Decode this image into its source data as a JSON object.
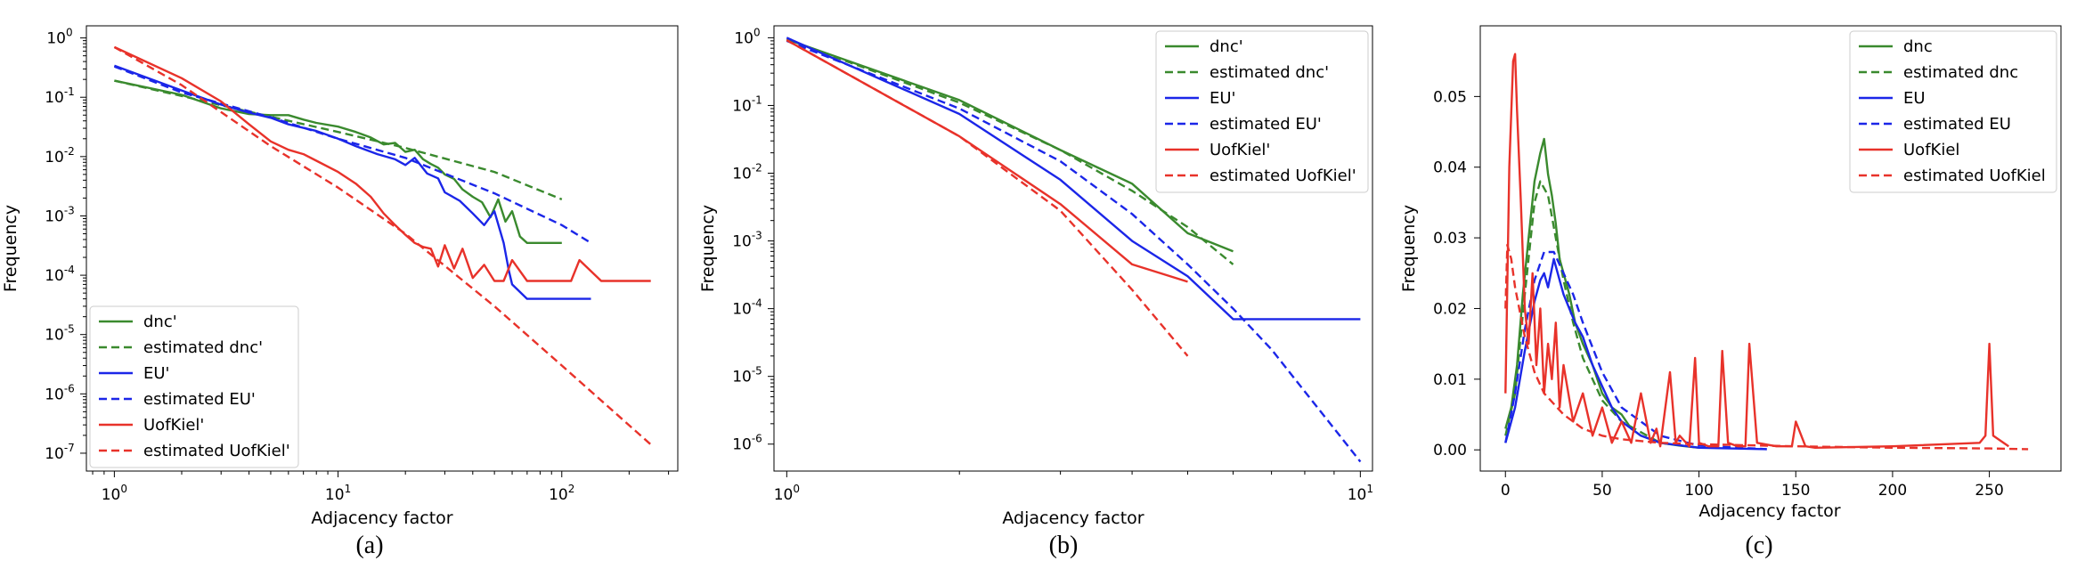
{
  "colors": {
    "green": "#3a8a2e",
    "blue": "#1b26e8",
    "red": "#e8322a"
  },
  "chart_data": [
    {
      "caption": "(a)",
      "type": "line",
      "scale": "loglog",
      "xlabel": "Adjacency factor",
      "ylabel": "Frequency",
      "xlim": [
        0.75,
        330
      ],
      "ylim": [
        5e-08,
        1.6
      ],
      "xticks": [
        1,
        10,
        100
      ],
      "xticklabels": [
        "10^0",
        "10^1",
        "10^2"
      ],
      "yticks": [
        1e-07,
        1e-06,
        1e-05,
        0.0001,
        0.001,
        0.01,
        0.1,
        1
      ],
      "yticklabels": [
        "10^-7",
        "10^-6",
        "10^-5",
        "10^-4",
        "10^-3",
        "10^-2",
        "10^-1",
        "10^0"
      ],
      "legend": {
        "position": "lower-left",
        "entries": [
          "dnc'",
          "estimated dnc'",
          "EU'",
          "estimated EU'",
          "UofKiel'",
          "estimated UofKiel'"
        ]
      },
      "series": [
        {
          "name": "dnc'",
          "color": "green",
          "dash": false,
          "x": [
            1,
            2,
            3,
            4,
            5,
            6,
            7,
            8,
            10,
            12,
            14,
            16,
            18,
            20,
            22,
            24,
            26,
            28,
            30,
            33,
            36,
            40,
            44,
            48,
            52,
            56,
            60,
            65,
            70,
            80,
            100
          ],
          "y": [
            0.19,
            0.11,
            0.065,
            0.052,
            0.05,
            0.05,
            0.042,
            0.037,
            0.032,
            0.026,
            0.021,
            0.016,
            0.017,
            0.012,
            0.013,
            0.009,
            0.0075,
            0.0065,
            0.005,
            0.0042,
            0.0028,
            0.0021,
            0.0017,
            0.00095,
            0.0019,
            0.0008,
            0.0012,
            0.00045,
            0.00035,
            0.00035,
            0.00035
          ]
        },
        {
          "name": "estimated dnc'",
          "color": "green",
          "dash": true,
          "x": [
            1,
            2,
            5,
            10,
            20,
            50,
            100
          ],
          "y": [
            0.19,
            0.105,
            0.047,
            0.026,
            0.014,
            0.0055,
            0.0019
          ]
        },
        {
          "name": "EU'",
          "color": "blue",
          "dash": false,
          "x": [
            1,
            2,
            3,
            4,
            5,
            6,
            8,
            10,
            12,
            15,
            18,
            20,
            22,
            25,
            28,
            30,
            35,
            40,
            45,
            50,
            55,
            58,
            60,
            70,
            80,
            100,
            135
          ],
          "y": [
            0.34,
            0.13,
            0.075,
            0.055,
            0.045,
            0.035,
            0.027,
            0.02,
            0.015,
            0.011,
            0.009,
            0.0072,
            0.0095,
            0.0052,
            0.0043,
            0.0025,
            0.0018,
            0.0011,
            0.0007,
            0.0012,
            0.00035,
            0.00012,
            7e-05,
            4e-05,
            4e-05,
            4e-05,
            4e-05
          ]
        },
        {
          "name": "estimated EU'",
          "color": "blue",
          "dash": true,
          "x": [
            1,
            2,
            5,
            10,
            20,
            50,
            100,
            135
          ],
          "y": [
            0.33,
            0.12,
            0.046,
            0.02,
            0.0095,
            0.0024,
            0.0007,
            0.00035
          ]
        },
        {
          "name": "UofKiel'",
          "color": "red",
          "dash": false,
          "x": [
            1,
            2,
            3,
            4,
            5,
            6,
            7,
            8,
            10,
            12,
            14,
            16,
            18,
            20,
            22,
            24,
            26,
            28,
            30,
            33,
            36,
            40,
            45,
            50,
            55,
            60,
            70,
            90,
            100,
            110,
            120,
            150,
            250
          ],
          "y": [
            0.7,
            0.21,
            0.085,
            0.035,
            0.018,
            0.013,
            0.011,
            0.0085,
            0.0055,
            0.0035,
            0.0021,
            0.0011,
            0.0007,
            0.00048,
            0.00035,
            0.0003,
            0.00028,
            0.00014,
            0.00032,
            0.00013,
            0.00028,
            9e-05,
            0.00015,
            8e-05,
            8e-05,
            0.00018,
            8e-05,
            8e-05,
            8e-05,
            8e-05,
            0.00018,
            8e-05,
            8e-05
          ]
        },
        {
          "name": "estimated UofKiel'",
          "color": "red",
          "dash": true,
          "x": [
            1,
            2,
            5,
            10,
            20,
            50,
            100,
            250
          ],
          "y": [
            0.7,
            0.16,
            0.015,
            0.003,
            0.0005,
            3e-05,
            3e-06,
            1.4e-07
          ]
        }
      ]
    },
    {
      "caption": "(b)",
      "type": "line",
      "scale": "loglog",
      "xlabel": "Adjacency factor",
      "ylabel": "Frequency",
      "xlim": [
        0.95,
        10.5
      ],
      "ylim": [
        4e-07,
        1.5
      ],
      "xticks": [
        1,
        10
      ],
      "xticklabels": [
        "10^0",
        "10^1"
      ],
      "yticks": [
        1e-06,
        1e-05,
        0.0001,
        0.001,
        0.01,
        0.1,
        1
      ],
      "yticklabels": [
        "10^-6",
        "10^-5",
        "10^-4",
        "10^-3",
        "10^-2",
        "10^-1",
        "10^0"
      ],
      "legend": {
        "position": "top-right",
        "entries": [
          "dnc'",
          "estimated dnc'",
          "EU'",
          "estimated EU'",
          "UofKiel'",
          "estimated UofKiel'"
        ]
      },
      "series": [
        {
          "name": "dnc'",
          "color": "green",
          "dash": false,
          "x": [
            1,
            2,
            3,
            4,
            5,
            6
          ],
          "y": [
            0.95,
            0.12,
            0.022,
            0.007,
            0.0013,
            0.0007
          ]
        },
        {
          "name": "estimated dnc'",
          "color": "green",
          "dash": true,
          "x": [
            1,
            2,
            3,
            4,
            5,
            6
          ],
          "y": [
            0.95,
            0.11,
            0.022,
            0.0055,
            0.0016,
            0.00045
          ]
        },
        {
          "name": "EU'",
          "color": "blue",
          "dash": false,
          "x": [
            1,
            2,
            3,
            4,
            5,
            6,
            7,
            10
          ],
          "y": [
            1.0,
            0.075,
            0.008,
            0.001,
            0.0003,
            7e-05,
            7e-05,
            7e-05
          ]
        },
        {
          "name": "estimated EU'",
          "color": "blue",
          "dash": true,
          "x": [
            1,
            2,
            3,
            4,
            5,
            6,
            7,
            8,
            9,
            10
          ],
          "y": [
            0.9,
            0.09,
            0.015,
            0.0025,
            0.00045,
            0.0001,
            2.5e-05,
            6e-06,
            1.7e-06,
            5.5e-07
          ]
        },
        {
          "name": "UofKiel'",
          "color": "red",
          "dash": false,
          "x": [
            1,
            2,
            3,
            4,
            5
          ],
          "y": [
            0.92,
            0.035,
            0.0035,
            0.00045,
            0.00025
          ]
        },
        {
          "name": "estimated UofKiel'",
          "color": "red",
          "dash": true,
          "x": [
            1,
            2,
            3,
            4,
            5
          ],
          "y": [
            0.92,
            0.035,
            0.0028,
            0.00019,
            2e-05
          ]
        }
      ]
    },
    {
      "caption": "(c)",
      "type": "line",
      "scale": "linear",
      "xlabel": "Adjacency factor",
      "ylabel": "Frequency",
      "xlim": [
        -13,
        287
      ],
      "ylim": [
        -0.003,
        0.06
      ],
      "xticks": [
        0,
        50,
        100,
        150,
        200,
        250
      ],
      "xticklabels": [
        "0",
        "50",
        "100",
        "150",
        "200",
        "250"
      ],
      "yticks": [
        0,
        0.01,
        0.02,
        0.03,
        0.04,
        0.05
      ],
      "yticklabels": [
        "0.00",
        "0.01",
        "0.02",
        "0.03",
        "0.04",
        "0.05"
      ],
      "legend": {
        "position": "top-right",
        "entries": [
          "dnc",
          "estimated dnc",
          "EU",
          "estimated EU",
          "UofKiel",
          "estimated UofKiel"
        ]
      },
      "series": [
        {
          "name": "dnc",
          "color": "green",
          "dash": false,
          "x": [
            0,
            3,
            6,
            9,
            12,
            15,
            18,
            20,
            22,
            24,
            26,
            28,
            30,
            33,
            36,
            40,
            45,
            50,
            55,
            60,
            65,
            70,
            80,
            90,
            100
          ],
          "y": [
            0.003,
            0.006,
            0.012,
            0.022,
            0.03,
            0.038,
            0.042,
            0.044,
            0.039,
            0.036,
            0.032,
            0.027,
            0.025,
            0.022,
            0.018,
            0.015,
            0.012,
            0.008,
            0.006,
            0.005,
            0.003,
            0.002,
            0.001,
            0.0006,
            0.0003
          ]
        },
        {
          "name": "estimated dnc",
          "color": "green",
          "dash": true,
          "x": [
            0,
            5,
            10,
            15,
            18,
            22,
            26,
            30,
            35,
            40,
            50,
            60,
            80,
            100
          ],
          "y": [
            0.002,
            0.008,
            0.022,
            0.035,
            0.038,
            0.036,
            0.03,
            0.024,
            0.018,
            0.013,
            0.007,
            0.004,
            0.001,
            0.0003
          ]
        },
        {
          "name": "EU",
          "color": "blue",
          "dash": false,
          "x": [
            0,
            5,
            10,
            15,
            18,
            20,
            22,
            25,
            28,
            30,
            33,
            36,
            40,
            45,
            50,
            55,
            60,
            70,
            80,
            100,
            135
          ],
          "y": [
            0.001,
            0.006,
            0.014,
            0.021,
            0.024,
            0.025,
            0.023,
            0.027,
            0.024,
            0.022,
            0.02,
            0.018,
            0.016,
            0.012,
            0.009,
            0.006,
            0.004,
            0.002,
            0.001,
            0.0003,
            0.0001
          ]
        },
        {
          "name": "estimated EU",
          "color": "blue",
          "dash": true,
          "x": [
            0,
            5,
            10,
            15,
            20,
            25,
            30,
            35,
            40,
            50,
            60,
            80,
            100,
            135
          ],
          "y": [
            0.001,
            0.008,
            0.017,
            0.024,
            0.028,
            0.028,
            0.025,
            0.022,
            0.018,
            0.011,
            0.006,
            0.002,
            0.0006,
            0.0001
          ]
        },
        {
          "name": "UofKiel",
          "color": "red",
          "dash": false,
          "x": [
            0,
            2,
            4,
            5,
            6,
            8,
            10,
            12,
            14,
            16,
            18,
            20,
            22,
            24,
            26,
            28,
            30,
            35,
            40,
            45,
            50,
            55,
            60,
            65,
            70,
            75,
            78,
            80,
            85,
            88,
            90,
            95,
            98,
            100,
            105,
            110,
            112,
            115,
            120,
            124,
            126,
            130,
            140,
            148,
            150,
            155,
            160,
            200,
            245,
            248,
            250,
            252,
            260
          ],
          "y": [
            0.008,
            0.04,
            0.055,
            0.056,
            0.048,
            0.035,
            0.02,
            0.015,
            0.025,
            0.012,
            0.02,
            0.008,
            0.015,
            0.01,
            0.018,
            0.006,
            0.012,
            0.004,
            0.008,
            0.002,
            0.006,
            0.001,
            0.004,
            0.001,
            0.008,
            0.001,
            0.003,
            0.0005,
            0.011,
            0.001,
            0.002,
            0.0005,
            0.013,
            0.001,
            0.0005,
            0.0005,
            0.014,
            0.001,
            0.0005,
            0.0005,
            0.015,
            0.001,
            0.0005,
            0.0005,
            0.004,
            0.0005,
            0.0003,
            0.0005,
            0.001,
            0.002,
            0.015,
            0.002,
            0.0005
          ]
        },
        {
          "name": "estimated UofKiel",
          "color": "red",
          "dash": true,
          "x": [
            0,
            1,
            3,
            5,
            10,
            15,
            20,
            30,
            40,
            50,
            60,
            80,
            100,
            150,
            200,
            250,
            270
          ],
          "y": [
            0.02,
            0.029,
            0.027,
            0.023,
            0.016,
            0.011,
            0.008,
            0.005,
            0.003,
            0.002,
            0.0015,
            0.001,
            0.0008,
            0.0005,
            0.0003,
            0.0002,
            0.0001
          ]
        }
      ]
    }
  ]
}
